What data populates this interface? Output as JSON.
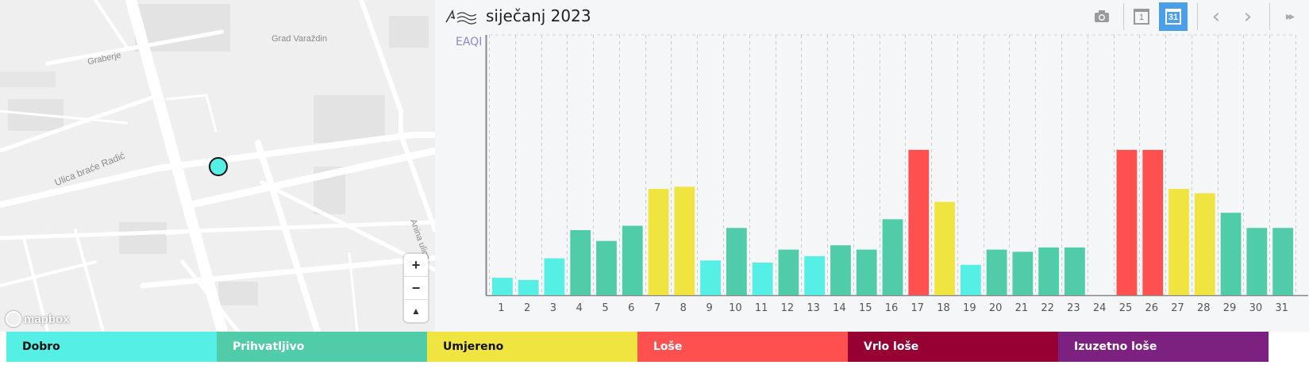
{
  "map": {
    "labels": {
      "grad": "Grad Varaždin",
      "graberje": "Graberje",
      "ulica": "Ulica braće Radić",
      "anina": "Anina ulica"
    },
    "zoom_in": "+",
    "zoom_out": "−",
    "compass": "▲",
    "attribution": "mapbox",
    "marker_color": "#55efe6"
  },
  "header": {
    "title": "siječanj 2023",
    "icons": [
      "logo-icon",
      "camera-icon",
      "calendar-day-icon",
      "calendar-month-icon",
      "prev-icon",
      "next-icon",
      "fast-forward-icon"
    ],
    "calendar_day_label": "1",
    "calendar_month_label": "31",
    "prev_label": "‹",
    "next_label": "›",
    "fast_forward_label": "▸▸"
  },
  "chart_data": {
    "type": "bar",
    "title": "",
    "xlabel": "",
    "ylabel": "EAQI",
    "ylim": [
      0,
      6
    ],
    "categories": [
      "1",
      "2",
      "3",
      "4",
      "5",
      "6",
      "7",
      "8",
      "9",
      "10",
      "11",
      "12",
      "13",
      "14",
      "15",
      "16",
      "17",
      "18",
      "19",
      "20",
      "21",
      "22",
      "23",
      "24",
      "25",
      "26",
      "27",
      "28",
      "29",
      "30",
      "31"
    ],
    "values": [
      0.4,
      0.35,
      0.85,
      1.5,
      1.25,
      1.6,
      2.45,
      2.5,
      0.8,
      1.55,
      0.75,
      1.05,
      0.9,
      1.15,
      1.05,
      1.75,
      3.35,
      2.15,
      0.7,
      1.05,
      1.0,
      1.1,
      1.1,
      null,
      3.35,
      3.35,
      2.45,
      2.35,
      1.9,
      1.55,
      1.55
    ],
    "levels": [
      1,
      1,
      1,
      2,
      2,
      2,
      3,
      3,
      1,
      2,
      1,
      2,
      1,
      2,
      2,
      2,
      4,
      3,
      1,
      2,
      2,
      2,
      2,
      null,
      4,
      4,
      3,
      3,
      2,
      2,
      2
    ],
    "grid": "vertical dashed",
    "legend_position": "bottom"
  },
  "legend": [
    {
      "label": "Dobro",
      "color": "#55efe6",
      "text_color": "#111111"
    },
    {
      "label": "Prihvatljivo",
      "color": "#50cca8",
      "text_color": "#ffffff"
    },
    {
      "label": "Umjereno",
      "color": "#f0e440",
      "text_color": "#111111"
    },
    {
      "label": "Loše",
      "color": "#ff5050",
      "text_color": "#ffffff"
    },
    {
      "label": "Vrlo loše",
      "color": "#960032",
      "text_color": "#ffffff"
    },
    {
      "label": "Izuzetno loše",
      "color": "#7d2181",
      "text_color": "#ffffff"
    }
  ]
}
